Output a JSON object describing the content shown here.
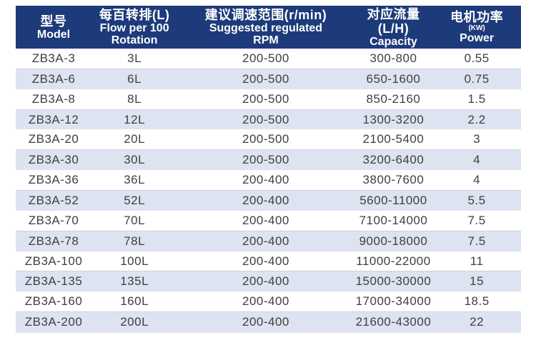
{
  "chart_data": {
    "type": "table",
    "columns": [
      {
        "zh": "型号",
        "en1": "Model"
      },
      {
        "zh": "每百转排(L)",
        "en1": "Flow per 100",
        "en2": "Rotation"
      },
      {
        "zh": "建议调速范围(r/min)",
        "en1": "Suggested regulated",
        "en2": "RPM"
      },
      {
        "zh": "对应流量(L/H)",
        "en1": "Capacity"
      },
      {
        "zh": "电机功率",
        "kw": "(KW)",
        "en1": "Power"
      }
    ],
    "rows": [
      [
        "ZB3A-3",
        "3L",
        "200-500",
        "300-800",
        "0.55"
      ],
      [
        "ZB3A-6",
        "6L",
        "200-500",
        "650-1600",
        "0.75"
      ],
      [
        "ZB3A-8",
        "8L",
        "200-500",
        "850-2160",
        "1.5"
      ],
      [
        "ZB3A-12",
        "12L",
        "200-500",
        "1300-3200",
        "2.2"
      ],
      [
        "ZB3A-20",
        "20L",
        "200-500",
        "2100-5400",
        "3"
      ],
      [
        "ZB3A-30",
        "30L",
        "200-500",
        "3200-6400",
        "4"
      ],
      [
        "ZB3A-36",
        "36L",
        "200-400",
        "3800-7600",
        "4"
      ],
      [
        "ZB3A-52",
        "52L",
        "200-400",
        "5600-11000",
        "5.5"
      ],
      [
        "ZB3A-70",
        "70L",
        "200-400",
        "7100-14000",
        "7.5"
      ],
      [
        "ZB3A-78",
        "78L",
        "200-400",
        "9000-18000",
        "7.5"
      ],
      [
        "ZB3A-100",
        "100L",
        "200-400",
        "11000-22000",
        "11"
      ],
      [
        "ZB3A-135",
        "135L",
        "200-400",
        "15000-30000",
        "15"
      ],
      [
        "ZB3A-160",
        "160L",
        "200-400",
        "17000-34000",
        "18.5"
      ],
      [
        "ZB3A-200",
        "200L",
        "200-400",
        "21600-43000",
        "22"
      ]
    ]
  },
  "colors": {
    "header_bg": "#1d3a7a",
    "header_text": "#ffffff",
    "row_alt_bg": "#dde3f1",
    "row_text": "#3f3f3f"
  }
}
